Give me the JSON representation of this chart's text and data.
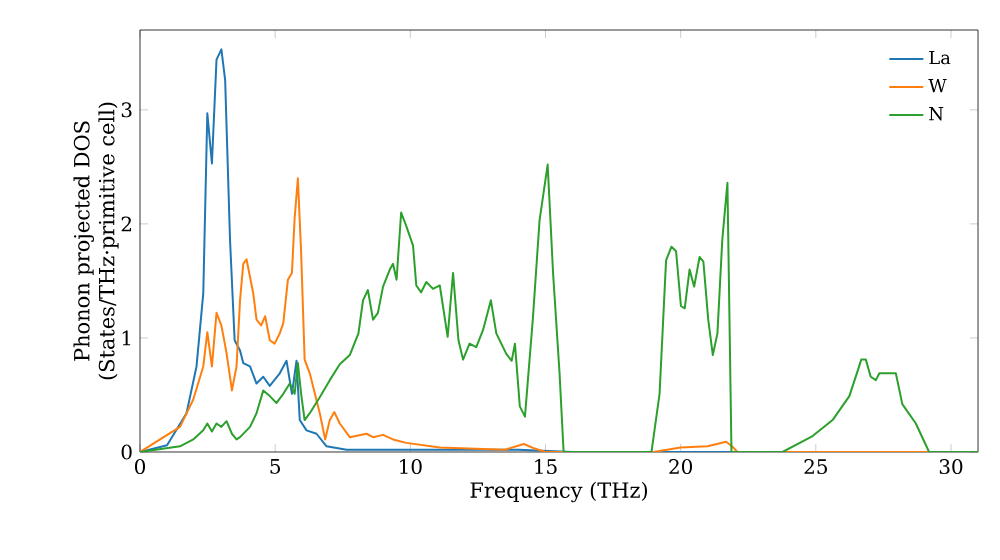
{
  "chart_data": {
    "type": "line",
    "xlabel": "Frequency (THz)",
    "ylabel": "Phonon projected DOS\n(States/THz·primitive cell)",
    "xlim": [
      0,
      31
    ],
    "ylim": [
      0,
      3.7
    ],
    "xticks": [
      0,
      5,
      10,
      15,
      20,
      25,
      30
    ],
    "yticks": [
      0,
      1,
      2,
      3
    ],
    "legend": "top right",
    "grid": false,
    "series": [
      {
        "name": "La",
        "color": "#1f77b4",
        "x": [
          0,
          1.0,
          1.72,
          2.09,
          2.34,
          2.49,
          2.66,
          2.83,
          3.01,
          3.15,
          3.33,
          3.5,
          3.7,
          3.82,
          4.07,
          4.31,
          4.56,
          4.8,
          5.17,
          5.42,
          5.62,
          5.79,
          5.91,
          6.16,
          6.53,
          6.9,
          7.64,
          10.0,
          12.0,
          14.0,
          15.0,
          16.0,
          31.0
        ],
        "values": [
          0,
          0.06,
          0.34,
          0.75,
          1.39,
          2.97,
          2.53,
          3.44,
          3.53,
          3.26,
          1.86,
          0.98,
          0.89,
          0.78,
          0.75,
          0.6,
          0.66,
          0.58,
          0.69,
          0.8,
          0.51,
          0.8,
          0.28,
          0.19,
          0.16,
          0.05,
          0.02,
          0.02,
          0.02,
          0.02,
          0.01,
          0,
          0
        ]
      },
      {
        "name": "W",
        "color": "#ff7f0e",
        "x": [
          0,
          1.48,
          1.97,
          2.34,
          2.49,
          2.66,
          2.83,
          3.01,
          3.2,
          3.4,
          3.57,
          3.7,
          3.82,
          3.94,
          4.19,
          4.31,
          4.48,
          4.63,
          4.8,
          4.98,
          5.17,
          5.3,
          5.47,
          5.62,
          5.72,
          5.84,
          5.96,
          6.09,
          6.28,
          6.65,
          6.85,
          7.02,
          7.19,
          7.39,
          7.76,
          8.38,
          8.62,
          8.99,
          9.36,
          9.85,
          11.09,
          13.5,
          14.2,
          14.6,
          15.0,
          19.0,
          20.0,
          21.0,
          21.68,
          21.9,
          22.1,
          31.0
        ],
        "values": [
          0,
          0.22,
          0.46,
          0.75,
          1.05,
          0.75,
          1.22,
          1.11,
          0.87,
          0.54,
          0.75,
          1.33,
          1.65,
          1.69,
          1.39,
          1.16,
          1.11,
          1.19,
          0.98,
          0.95,
          1.04,
          1.13,
          1.51,
          1.57,
          2.05,
          2.4,
          1.75,
          0.81,
          0.69,
          0.34,
          0.11,
          0.28,
          0.35,
          0.25,
          0.13,
          0.16,
          0.13,
          0.15,
          0.11,
          0.08,
          0.04,
          0.02,
          0.07,
          0.03,
          0,
          0,
          0.04,
          0.05,
          0.09,
          0.05,
          0,
          0
        ]
      },
      {
        "name": "N",
        "color": "#2ca02c",
        "x": [
          0,
          1.48,
          1.97,
          2.34,
          2.49,
          2.66,
          2.83,
          3.01,
          3.2,
          3.4,
          3.57,
          3.7,
          4.07,
          4.31,
          4.56,
          4.8,
          5.05,
          5.3,
          5.54,
          5.72,
          5.84,
          5.96,
          6.09,
          6.28,
          6.65,
          7.02,
          7.39,
          7.76,
          8.08,
          8.25,
          8.43,
          8.62,
          8.8,
          8.99,
          9.24,
          9.36,
          9.49,
          9.66,
          9.85,
          10.1,
          10.22,
          10.4,
          10.59,
          10.84,
          11.09,
          11.38,
          11.58,
          11.78,
          11.95,
          12.19,
          12.44,
          12.69,
          12.98,
          13.18,
          13.55,
          13.75,
          13.87,
          14.05,
          14.24,
          14.53,
          14.78,
          15.08,
          15.28,
          15.52,
          15.67,
          18.92,
          19.22,
          19.46,
          19.66,
          19.83,
          20.01,
          20.15,
          20.33,
          20.5,
          20.7,
          20.84,
          21.02,
          21.19,
          21.36,
          21.54,
          21.73,
          21.88,
          23.77,
          24.88,
          25.62,
          26.24,
          26.56,
          26.68,
          26.85,
          27.03,
          27.22,
          27.35,
          27.96,
          28.2,
          28.7,
          29.19,
          31.0
        ],
        "values": [
          0,
          0.05,
          0.11,
          0.19,
          0.25,
          0.18,
          0.25,
          0.22,
          0.27,
          0.16,
          0.11,
          0.13,
          0.22,
          0.34,
          0.54,
          0.49,
          0.43,
          0.51,
          0.6,
          0.51,
          0.78,
          0.51,
          0.28,
          0.34,
          0.48,
          0.63,
          0.77,
          0.85,
          1.04,
          1.33,
          1.42,
          1.16,
          1.22,
          1.45,
          1.6,
          1.65,
          1.51,
          2.1,
          1.98,
          1.81,
          1.46,
          1.4,
          1.49,
          1.43,
          1.46,
          1.01,
          1.57,
          0.98,
          0.81,
          0.95,
          0.92,
          1.07,
          1.33,
          1.04,
          0.86,
          0.8,
          0.95,
          0.4,
          0.31,
          1.16,
          2.03,
          2.52,
          1.57,
          0.69,
          0,
          0,
          0.51,
          1.68,
          1.8,
          1.76,
          1.28,
          1.26,
          1.6,
          1.45,
          1.71,
          1.67,
          1.16,
          0.85,
          1.04,
          1.86,
          2.36,
          0,
          0,
          0.14,
          0.28,
          0.49,
          0.72,
          0.81,
          0.81,
          0.66,
          0.63,
          0.69,
          0.69,
          0.42,
          0.25,
          0,
          0
        ]
      }
    ]
  }
}
